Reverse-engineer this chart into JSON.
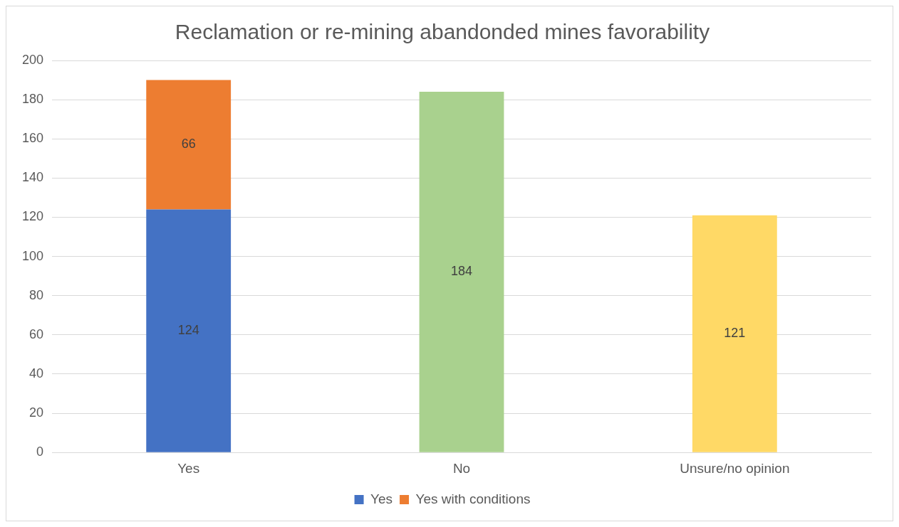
{
  "chart_data": {
    "type": "bar",
    "title": "Reclamation or re-mining abandonded mines favorability",
    "categories": [
      "Yes",
      "No",
      "Unsure/no opinion"
    ],
    "series": [
      {
        "name": "Yes",
        "color": "#4472c4",
        "values": [
          124,
          null,
          null
        ]
      },
      {
        "name": "Yes with conditions",
        "color": "#ed7d31",
        "values": [
          66,
          null,
          null
        ]
      },
      {
        "color": "#a9d18e",
        "values": [
          null,
          184,
          null
        ]
      },
      {
        "color": "#ffd966",
        "values": [
          null,
          null,
          121
        ]
      }
    ],
    "stacked": true,
    "data_labels": true,
    "legend": "bottom",
    "grid": "y",
    "ylim": [
      0,
      200
    ],
    "yticks": [
      0,
      20,
      40,
      60,
      80,
      100,
      120,
      140,
      160,
      180,
      200
    ]
  }
}
